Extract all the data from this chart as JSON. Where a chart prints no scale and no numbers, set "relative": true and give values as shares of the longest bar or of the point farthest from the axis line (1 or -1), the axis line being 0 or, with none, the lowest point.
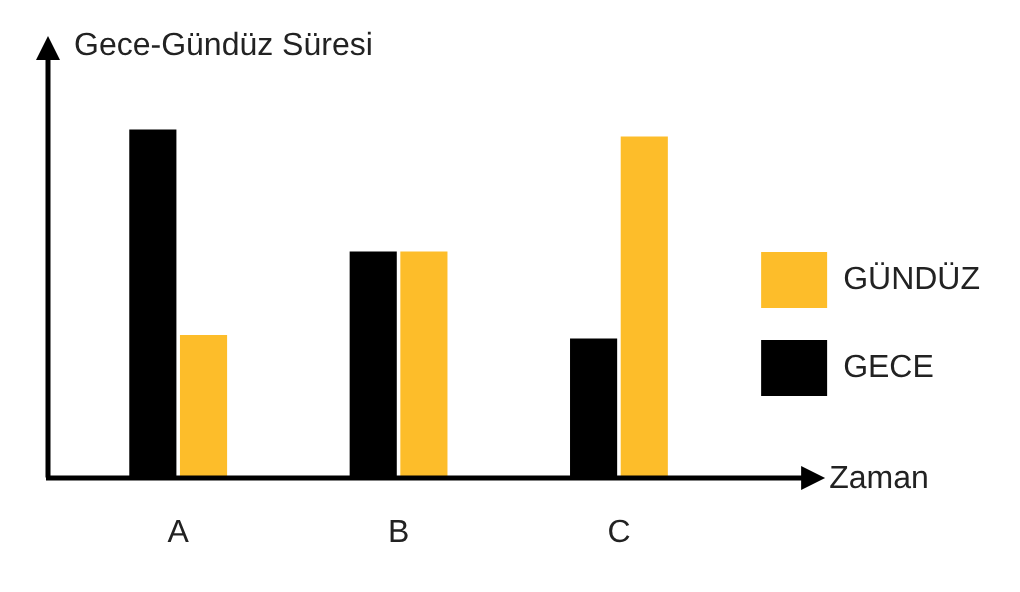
{
  "chart_data": {
    "type": "bar",
    "relative": true,
    "xlabel": "Zaman",
    "ylabel": "Gece-Gündüz Süresi",
    "categories": [
      "A",
      "B",
      "C"
    ],
    "series": [
      {
        "name": "GECE",
        "color": "#000000",
        "values": [
          1,
          0.65,
          0.4
        ]
      },
      {
        "name": "GÜNDÜZ",
        "color": "#fdbd2a",
        "values": [
          0.41,
          0.65,
          0.98
        ]
      }
    ],
    "legend": "right"
  }
}
